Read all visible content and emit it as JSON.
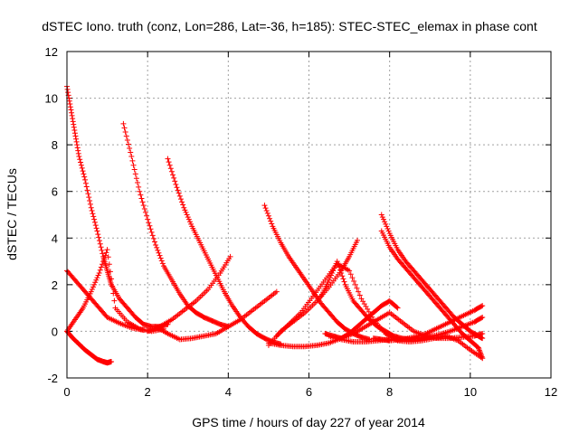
{
  "chart_data": {
    "type": "scatter",
    "title": "dSTEC Iono. truth (conz, Lon=286, Lat=-36, h=185): STEC-STEC_elemax in phase cont",
    "xlabel": "GPS time / hours of day 227 of year 2014",
    "ylabel": "dSTEC  / TECUs",
    "xlim": [
      0,
      12
    ],
    "ylim": [
      -2,
      12
    ],
    "xticks": [
      "0",
      "2",
      "4",
      "6",
      "8",
      "10",
      "12"
    ],
    "yticks": [
      "-2",
      "0",
      "2",
      "4",
      "6",
      "8",
      "10",
      "12"
    ],
    "grid": true,
    "marker": "+",
    "color": "#ff0000",
    "series": [
      {
        "x": [
          0.0,
          0.1,
          0.2,
          0.3,
          0.45,
          0.6,
          0.75,
          0.9,
          1.0,
          1.1
        ],
        "y": [
          10.5,
          9.5,
          8.5,
          7.5,
          6.5,
          5.3,
          4.3,
          3.2,
          2.6,
          2.0
        ]
      },
      {
        "x": [
          1.1,
          1.3,
          1.5,
          1.7,
          1.9,
          2.1,
          2.3,
          2.5
        ],
        "y": [
          2.0,
          1.4,
          1.0,
          0.6,
          0.3,
          0.2,
          0.2,
          0.3
        ]
      },
      {
        "x": [
          0.0,
          0.15,
          0.3,
          0.45,
          0.6,
          0.75,
          0.9,
          1.0,
          1.1
        ],
        "y": [
          0.0,
          -0.3,
          -0.55,
          -0.8,
          -1.0,
          -1.2,
          -1.3,
          -1.35,
          -1.3
        ]
      },
      {
        "x": [
          0.0,
          0.2,
          0.4,
          0.6,
          0.8,
          1.0,
          1.2,
          1.5,
          1.8,
          2.1,
          2.4
        ],
        "y": [
          0.0,
          0.5,
          1.0,
          1.7,
          2.5,
          3.5,
          1.0,
          0.4,
          0.1,
          0.0,
          0.1
        ]
      },
      {
        "x": [
          0.0,
          0.2,
          0.4,
          0.6,
          0.8,
          1.0,
          1.3,
          1.6,
          1.9
        ],
        "y": [
          2.6,
          2.2,
          1.8,
          1.4,
          1.0,
          0.6,
          0.35,
          0.15,
          0.05
        ]
      },
      {
        "x": [
          1.4,
          1.6,
          1.8,
          2.0,
          2.2,
          2.4,
          2.6,
          2.8,
          3.0,
          3.2,
          3.4,
          3.6,
          3.8,
          4.0
        ],
        "y": [
          8.9,
          7.5,
          6.0,
          4.8,
          3.7,
          2.8,
          2.2,
          1.6,
          1.1,
          0.8,
          0.6,
          0.45,
          0.3,
          0.2
        ]
      },
      {
        "x": [
          2.5,
          2.7,
          2.9,
          3.1,
          3.3,
          3.5,
          3.7,
          3.9,
          4.1,
          4.3,
          4.5,
          4.7,
          4.9,
          5.1,
          5.3
        ],
        "y": [
          7.4,
          6.3,
          5.3,
          4.5,
          3.8,
          3.1,
          2.4,
          1.7,
          1.1,
          0.6,
          0.2,
          -0.1,
          -0.3,
          -0.45,
          -0.55
        ]
      },
      {
        "x": [
          2.0,
          2.3,
          2.6,
          2.9,
          3.2,
          3.5,
          3.8,
          4.05
        ],
        "y": [
          0.0,
          0.2,
          0.5,
          0.9,
          1.3,
          1.8,
          2.5,
          3.2
        ]
      },
      {
        "x": [
          2.2,
          2.5,
          2.8,
          3.1,
          3.4,
          3.7,
          4.0,
          4.3,
          4.6,
          4.9,
          5.2
        ],
        "y": [
          0.2,
          -0.1,
          -0.35,
          -0.3,
          -0.2,
          -0.1,
          0.2,
          0.5,
          0.9,
          1.3,
          1.7
        ]
      },
      {
        "x": [
          4.9,
          5.1,
          5.3,
          5.5,
          5.7,
          5.9,
          6.1,
          6.3,
          6.5,
          6.7,
          6.9,
          7.1,
          7.3,
          7.5
        ],
        "y": [
          5.4,
          4.5,
          3.8,
          3.2,
          2.7,
          2.2,
          1.7,
          1.2,
          0.8,
          0.4,
          0.1,
          -0.1,
          -0.25,
          -0.35
        ]
      },
      {
        "x": [
          5.0,
          5.3,
          5.6,
          5.9,
          6.2,
          6.5,
          6.8,
          7.1,
          7.4,
          7.7,
          8.0,
          8.3,
          8.6,
          8.9,
          9.2,
          9.5,
          9.8,
          10.1,
          10.3
        ],
        "y": [
          -0.5,
          -0.6,
          -0.65,
          -0.65,
          -0.6,
          -0.5,
          -0.3,
          -0.1,
          0.2,
          0.5,
          0.8,
          0.4,
          0.0,
          -0.2,
          -0.3,
          -0.3,
          -0.25,
          -0.2,
          -0.1
        ]
      },
      {
        "x": [
          5.0,
          5.3,
          5.6,
          5.9,
          6.2,
          6.5,
          6.8,
          7.0,
          7.2
        ],
        "y": [
          -0.6,
          0.0,
          0.4,
          0.8,
          1.3,
          1.9,
          2.6,
          3.2,
          3.9
        ]
      },
      {
        "x": [
          6.3,
          6.5,
          6.7,
          6.9,
          7.1,
          7.3,
          7.5,
          7.7,
          7.9,
          8.1,
          8.3,
          8.5,
          8.7,
          9.0
        ],
        "y": [
          1.5,
          2.2,
          3.0,
          2.0,
          1.3,
          0.9,
          0.5,
          0.2,
          0.0,
          -0.2,
          -0.3,
          -0.35,
          -0.3,
          -0.2
        ]
      },
      {
        "x": [
          7.8,
          8.0,
          8.2,
          8.4,
          8.6,
          8.8,
          9.0,
          9.2,
          9.4,
          9.6,
          9.8,
          10.0,
          10.2,
          10.3
        ],
        "y": [
          5.0,
          4.2,
          3.5,
          3.0,
          2.6,
          2.2,
          1.8,
          1.4,
          1.0,
          0.6,
          0.3,
          0.0,
          -0.2,
          -0.3
        ]
      },
      {
        "x": [
          7.8,
          8.0,
          8.2,
          8.4,
          8.6,
          8.8,
          9.0,
          9.2,
          9.4,
          9.6,
          9.8,
          10.0,
          10.2,
          10.3
        ],
        "y": [
          4.3,
          3.6,
          3.1,
          2.7,
          2.3,
          1.9,
          1.5,
          1.1,
          0.7,
          0.3,
          -0.1,
          -0.4,
          -0.7,
          -1.15
        ]
      },
      {
        "x": [
          7.6,
          7.8,
          8.0,
          8.3,
          8.6,
          8.9,
          9.2,
          9.5,
          9.8,
          10.1,
          10.3
        ],
        "y": [
          -0.3,
          -0.35,
          -0.4,
          -0.35,
          -0.25,
          -0.1,
          0.15,
          0.4,
          0.65,
          0.9,
          1.1
        ]
      },
      {
        "x": [
          5.2,
          5.5,
          5.8,
          6.1,
          6.4,
          6.7,
          7.0,
          7.3,
          7.6,
          7.9,
          8.2,
          8.5,
          8.8,
          9.1,
          9.4,
          9.7,
          10.0,
          10.3
        ],
        "y": [
          -0.2,
          0.3,
          0.8,
          1.5,
          2.2,
          2.9,
          2.6,
          1.4,
          0.5,
          -0.1,
          -0.4,
          -0.45,
          -0.4,
          -0.3,
          -0.2,
          -0.4,
          -0.8,
          -1.15
        ]
      },
      {
        "x": [
          6.5,
          6.8,
          7.1,
          7.4,
          7.7,
          8.0,
          8.3,
          8.6,
          8.9,
          9.2,
          9.5,
          9.8,
          10.1,
          10.3
        ],
        "y": [
          -0.2,
          -0.35,
          -0.45,
          -0.45,
          -0.4,
          -0.35,
          -0.35,
          -0.3,
          -0.25,
          -0.15,
          0.0,
          0.2,
          0.4,
          0.6
        ]
      },
      {
        "x": [
          6.4,
          6.6,
          6.8,
          7.0,
          7.2,
          7.4,
          7.6,
          7.8,
          8.0,
          8.2
        ],
        "y": [
          -0.1,
          -0.2,
          -0.3,
          -0.1,
          0.2,
          0.5,
          0.8,
          1.1,
          1.3,
          1.0
        ]
      }
    ]
  }
}
